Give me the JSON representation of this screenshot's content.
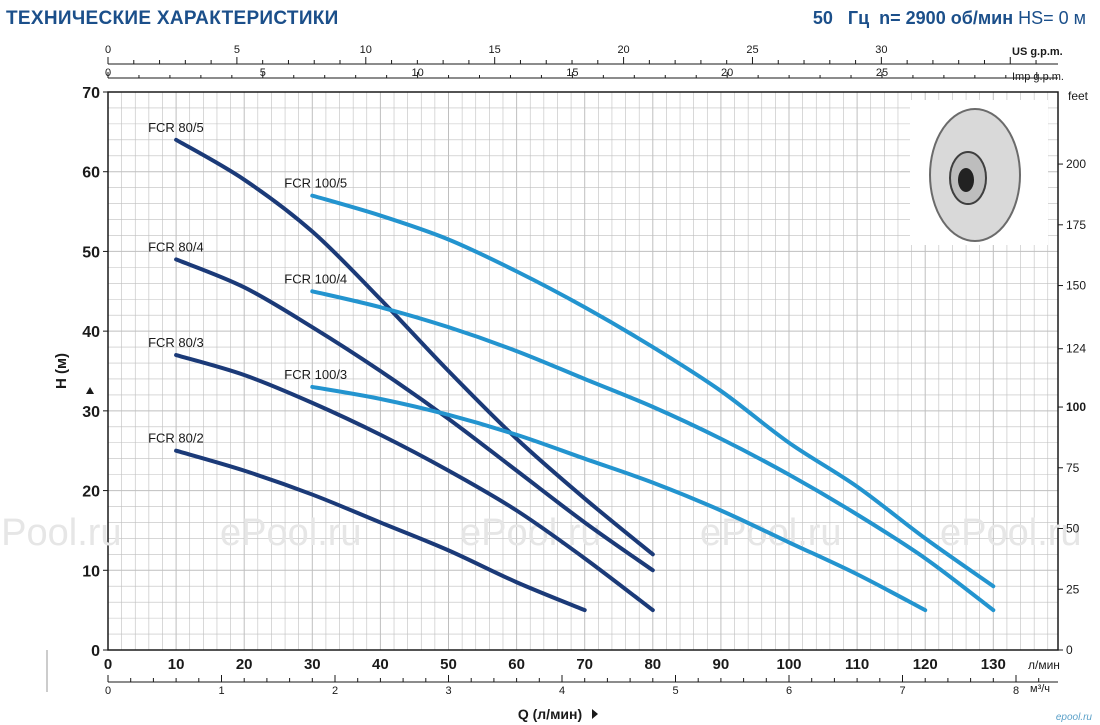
{
  "header": {
    "title": "ТЕХНИЧЕСКИЕ ХАРАКТЕРИСТИКИ",
    "freq": "50",
    "freq_unit": "Гц",
    "speed": "n= 2900 об/мин",
    "hs": "HS= 0 м"
  },
  "footer": {
    "site": "epool.ru"
  },
  "watermark": [
    "ePool.ru",
    "ePool.ru",
    "ePool.ru",
    "ePool.ru",
    "ePool.ru"
  ],
  "colors": {
    "fcr80": "#1b3a78",
    "fcr100": "#2394cf",
    "grid": "#bfbfbf",
    "axis": "#1a1a1a",
    "title": "#1b4f8a"
  },
  "image": {
    "name": "impeller-photo",
    "icon": "pump-impeller"
  },
  "chart_data": {
    "type": "line",
    "x_primary": {
      "label": "л/мин",
      "range": [
        0,
        130
      ],
      "ticks": [
        0,
        10,
        20,
        30,
        40,
        50,
        60,
        70,
        80,
        90,
        100,
        110,
        120,
        130
      ]
    },
    "x_top_us": {
      "label": "US g.p.m.",
      "range": [
        0,
        30
      ],
      "ticks": [
        0,
        5,
        10,
        15,
        20,
        25,
        30
      ]
    },
    "x_top_imp": {
      "label": "Imp g.p.m.",
      "range": [
        0,
        25
      ],
      "ticks": [
        0,
        5,
        10,
        15,
        20,
        25
      ]
    },
    "x_bottom_m3h": {
      "label": "м³/ч",
      "range": [
        0,
        8
      ],
      "ticks": [
        0,
        1,
        2,
        3,
        4,
        5,
        6,
        7,
        8
      ]
    },
    "xlabel": "Q (л/мин)",
    "y_left": {
      "label": "H (м)",
      "range": [
        0,
        70
      ],
      "ticks": [
        0,
        10,
        20,
        30,
        40,
        50,
        60,
        70
      ]
    },
    "y_right": {
      "label": "feet",
      "ticks": [
        0,
        25,
        50,
        75,
        100,
        124,
        150,
        175,
        200
      ]
    },
    "grid": true,
    "series": [
      {
        "name": "FCR 80/5",
        "group": "fcr80",
        "x": [
          10,
          20,
          30,
          40,
          50,
          60,
          70,
          80
        ],
        "y": [
          64,
          59,
          52.5,
          44,
          35,
          26.5,
          19,
          12
        ]
      },
      {
        "name": "FCR 80/4",
        "group": "fcr80",
        "x": [
          10,
          20,
          30,
          40,
          50,
          60,
          70,
          80
        ],
        "y": [
          49,
          45.5,
          40.5,
          35,
          29,
          22.5,
          16,
          10
        ]
      },
      {
        "name": "FCR 80/3",
        "group": "fcr80",
        "x": [
          10,
          20,
          30,
          40,
          50,
          60,
          70,
          80
        ],
        "y": [
          37,
          34.5,
          31,
          27,
          22.5,
          17.5,
          11.5,
          5
        ]
      },
      {
        "name": "FCR 80/2",
        "group": "fcr80",
        "x": [
          10,
          20,
          30,
          40,
          50,
          60,
          70
        ],
        "y": [
          25,
          22.5,
          19.5,
          16,
          12.5,
          8.5,
          5
        ]
      },
      {
        "name": "FCR 100/5",
        "group": "fcr100",
        "x": [
          30,
          40,
          50,
          60,
          70,
          80,
          90,
          100,
          110,
          120,
          130
        ],
        "y": [
          57,
          54.5,
          51.5,
          47.5,
          43,
          38,
          32.5,
          26,
          20.5,
          14,
          8
        ]
      },
      {
        "name": "FCR 100/4",
        "group": "fcr100",
        "x": [
          30,
          40,
          50,
          60,
          70,
          80,
          90,
          100,
          110,
          120,
          130
        ],
        "y": [
          45,
          43,
          40.5,
          37.5,
          34,
          30.5,
          26.5,
          22,
          17,
          11.5,
          5
        ]
      },
      {
        "name": "FCR 100/3",
        "group": "fcr100",
        "x": [
          30,
          40,
          50,
          60,
          70,
          80,
          90,
          100,
          110,
          120
        ],
        "y": [
          33,
          31.5,
          29.5,
          27,
          24,
          21,
          17.5,
          13.5,
          9.5,
          5
        ]
      }
    ]
  }
}
